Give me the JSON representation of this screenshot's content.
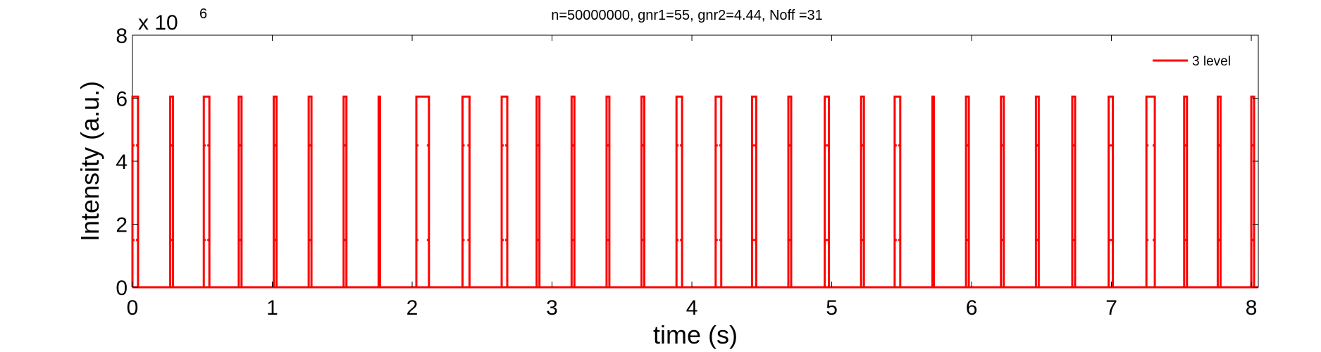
{
  "chart_data": {
    "type": "line",
    "title": "n=50000000, gnr1=55, gnr2=4.44, Noff =31",
    "xlabel": "time (s)",
    "ylabel": "Intensity (a.u.)",
    "y_multiplier_base": "x 10",
    "y_multiplier_exponent": "6",
    "xlim": [
      0,
      8.05
    ],
    "ylim": [
      0,
      8
    ],
    "xticks": [
      0,
      1,
      2,
      3,
      4,
      5,
      6,
      7,
      8
    ],
    "xtick_labels": [
      "0",
      "1",
      "2",
      "3",
      "4",
      "5",
      "6",
      "7",
      "8"
    ],
    "yticks": [
      0,
      2,
      4,
      6,
      8
    ],
    "ytick_labels": [
      "0",
      "2",
      "4",
      "6",
      "8"
    ],
    "grid": false,
    "legend_position": "top-right",
    "series": [
      {
        "name": "3 level",
        "color": "#ff0000",
        "high_value": 6.05,
        "low_value": 0,
        "intermediate_values": [
          1.5,
          4.5
        ],
        "pulses": [
          [
            0.0,
            0.04
          ],
          [
            0.27,
            0.29
          ],
          [
            0.51,
            0.55
          ],
          [
            0.76,
            0.78
          ],
          [
            1.01,
            1.03
          ],
          [
            1.26,
            1.28
          ],
          [
            1.51,
            1.53
          ],
          [
            1.76,
            1.77
          ],
          [
            2.03,
            2.12
          ],
          [
            2.36,
            2.41
          ],
          [
            2.64,
            2.68
          ],
          [
            2.89,
            2.91
          ],
          [
            3.14,
            3.16
          ],
          [
            3.39,
            3.41
          ],
          [
            3.64,
            3.66
          ],
          [
            3.89,
            3.93
          ],
          [
            4.17,
            4.21
          ],
          [
            4.43,
            4.46
          ],
          [
            4.69,
            4.71
          ],
          [
            4.95,
            4.98
          ],
          [
            5.21,
            5.23
          ],
          [
            5.45,
            5.49
          ],
          [
            5.72,
            5.73
          ],
          [
            5.96,
            5.98
          ],
          [
            6.21,
            6.23
          ],
          [
            6.46,
            6.48
          ],
          [
            6.72,
            6.74
          ],
          [
            6.98,
            7.01
          ],
          [
            7.25,
            7.31
          ],
          [
            7.52,
            7.54
          ],
          [
            7.76,
            7.78
          ],
          [
            8.0,
            8.02
          ]
        ]
      }
    ]
  }
}
